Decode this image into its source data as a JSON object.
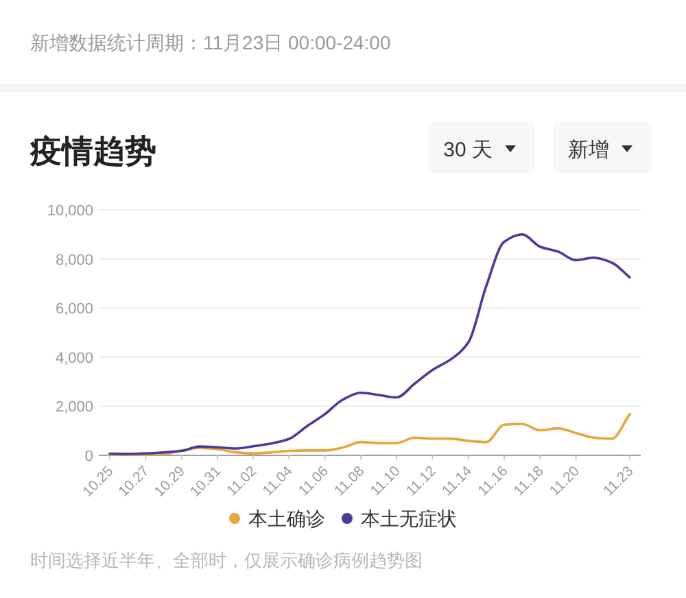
{
  "chart_data": {
    "type": "line",
    "title": "疫情趋势",
    "annotations": [
      "新增数据统计周期：11月23日 00:00-24:00",
      "30 天",
      "新增",
      "时间选择近半年、全部时，仅展示确诊病例趋势图"
    ],
    "categories": [
      "10.25",
      null,
      "10.27",
      null,
      "10.29",
      null,
      "10.31",
      null,
      "11.02",
      null,
      "11.04",
      null,
      "11.06",
      null,
      "11.08",
      null,
      "11.10",
      null,
      "11.12",
      null,
      "11.14",
      null,
      "11.16",
      null,
      "11.18",
      null,
      "11.20",
      null,
      null,
      "11.23"
    ],
    "series": [
      {
        "name": "本土确诊",
        "color": "#e8a53a",
        "values": [
          20,
          20,
          30,
          50,
          200,
          300,
          250,
          130,
          80,
          120,
          180,
          200,
          200,
          320,
          540,
          500,
          500,
          720,
          680,
          680,
          590,
          540,
          1250,
          1280,
          1020,
          1100,
          910,
          720,
          680,
          1680
        ]
      },
      {
        "name": "本土无症状",
        "color": "#4b3a9e",
        "values": [
          70,
          60,
          80,
          120,
          180,
          360,
          330,
          280,
          370,
          480,
          670,
          1190,
          1680,
          2270,
          2550,
          2460,
          2360,
          2920,
          3480,
          3900,
          4600,
          6900,
          8700,
          9000,
          8500,
          8300,
          7950,
          8050,
          7850,
          7250
        ]
      }
    ],
    "ylim": [
      0,
      10000
    ],
    "yticks": [
      0,
      {
        "value": 2000,
        "label": "2,000"
      },
      {
        "value": 4000,
        "label": "4,000"
      },
      {
        "value": 6000,
        "label": "6,000"
      },
      {
        "value": 8000,
        "label": "8,000"
      },
      {
        "value": 10000,
        "label": "10,000"
      }
    ],
    "grid": "y",
    "legend": "bottom"
  }
}
